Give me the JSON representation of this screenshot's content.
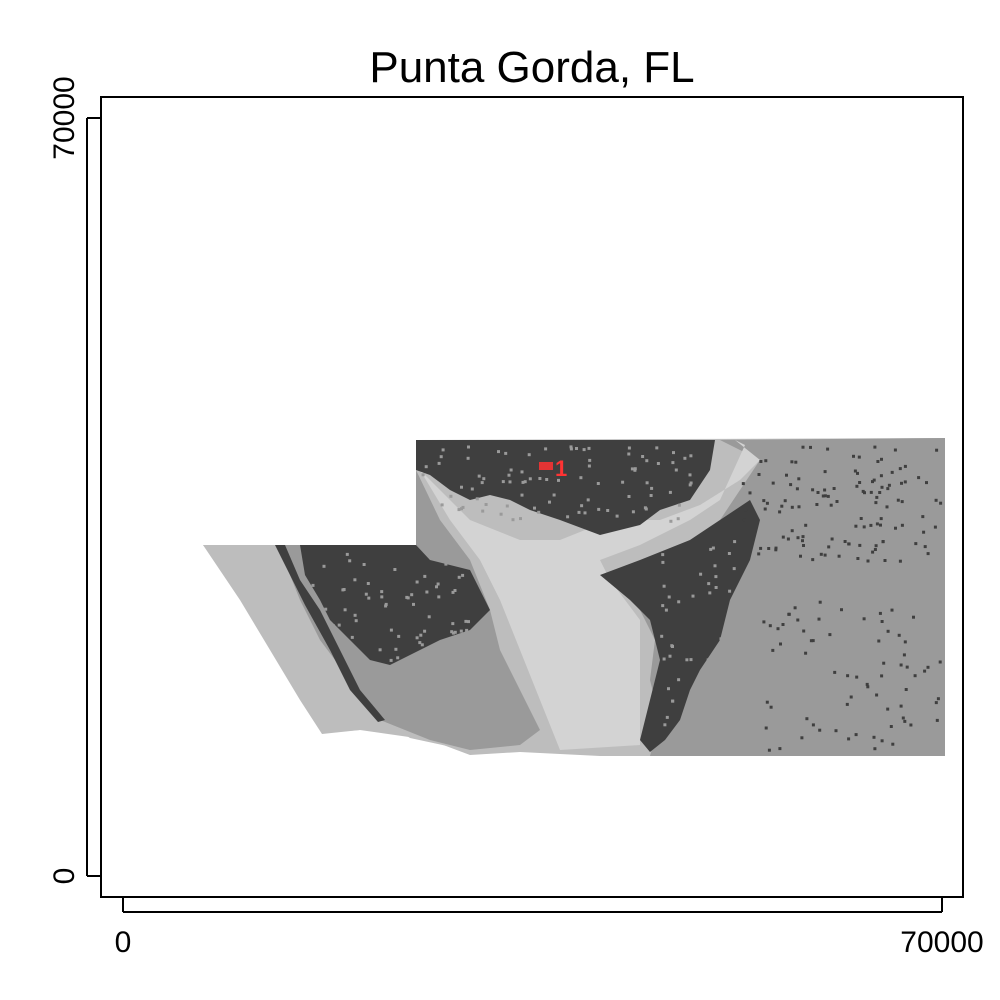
{
  "title": "Punta Gorda, FL",
  "axes": {
    "x": {
      "min": 0,
      "max": 70000,
      "ticks": [
        {
          "value": 0,
          "label": "0"
        },
        {
          "value": 70000,
          "label": "70000"
        }
      ]
    },
    "y": {
      "min": 0,
      "max": 70000,
      "ticks": [
        {
          "value": 0,
          "label": "0"
        },
        {
          "value": 70000,
          "label": "70000"
        }
      ]
    }
  },
  "map": {
    "land_cover_colors": {
      "dark": "#3f3f3f",
      "medium": "#9a9a9a",
      "light": "#bdbdbd",
      "pale": "#d3d3d3"
    },
    "marker": {
      "label": "1",
      "color": "#ff3333"
    }
  }
}
